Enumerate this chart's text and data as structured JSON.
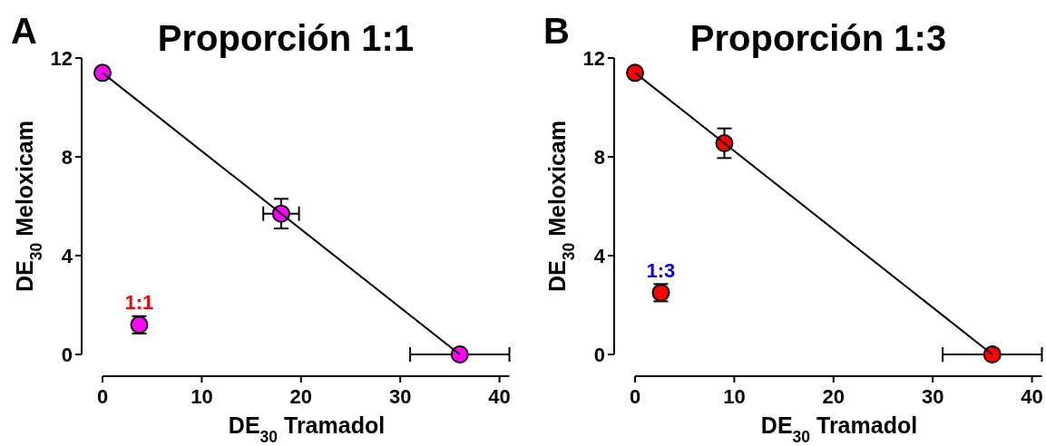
{
  "chart_data": [
    {
      "type": "scatter",
      "title": "Proporción 1:1",
      "xlabel": "DE$_{30}$ Tramadol",
      "ylabel": "DE$_{30}$ Meloxicam",
      "annotations": [
        "A",
        {
          "text": "1:1",
          "x": 3.7,
          "y": 1.2
        }
      ],
      "xlim": [
        0,
        41
      ],
      "xticks": [
        0,
        10,
        20,
        30,
        40
      ],
      "ylim": [
        0,
        12
      ],
      "yticks": [
        0,
        4,
        8,
        12
      ],
      "series": [
        {
          "color": "#ff00ff",
          "marker": "circle",
          "x": [
            0,
            18,
            36,
            3.7
          ],
          "values": [
            11.4,
            5.7,
            0,
            1.2
          ],
          "errors": [
            null,
            0.6,
            null,
            0.35
          ],
          "xerrors": [
            null,
            1.8,
            5,
            null
          ]
        },
        {
          "type": "line",
          "color": "#000000",
          "x": [
            0,
            36
          ],
          "values": [
            11.4,
            0
          ]
        }
      ]
    },
    {
      "type": "scatter",
      "title": "Proporción 1:3",
      "xlabel": "DE$_{30}$ Tramadol",
      "ylabel": "DE$_{30}$ Meloxicam",
      "annotations": [
        "B",
        {
          "text": "1:3",
          "x": 2.6,
          "y": 2.5
        }
      ],
      "xlim": [
        0,
        41
      ],
      "xticks": [
        0,
        10,
        20,
        30,
        40
      ],
      "ylim": [
        0,
        12
      ],
      "yticks": [
        0,
        4,
        8,
        12
      ],
      "series": [
        {
          "color": "#ff0000",
          "marker": "circle",
          "x": [
            0,
            9,
            36,
            2.6
          ],
          "values": [
            11.4,
            8.55,
            0,
            2.5
          ],
          "errors": [
            null,
            0.6,
            null,
            0.35
          ],
          "xerrors": [
            null,
            null,
            5,
            null
          ]
        },
        {
          "type": "line",
          "color": "#000000",
          "x": [
            0,
            36
          ],
          "values": [
            11.4,
            0
          ]
        }
      ]
    }
  ]
}
